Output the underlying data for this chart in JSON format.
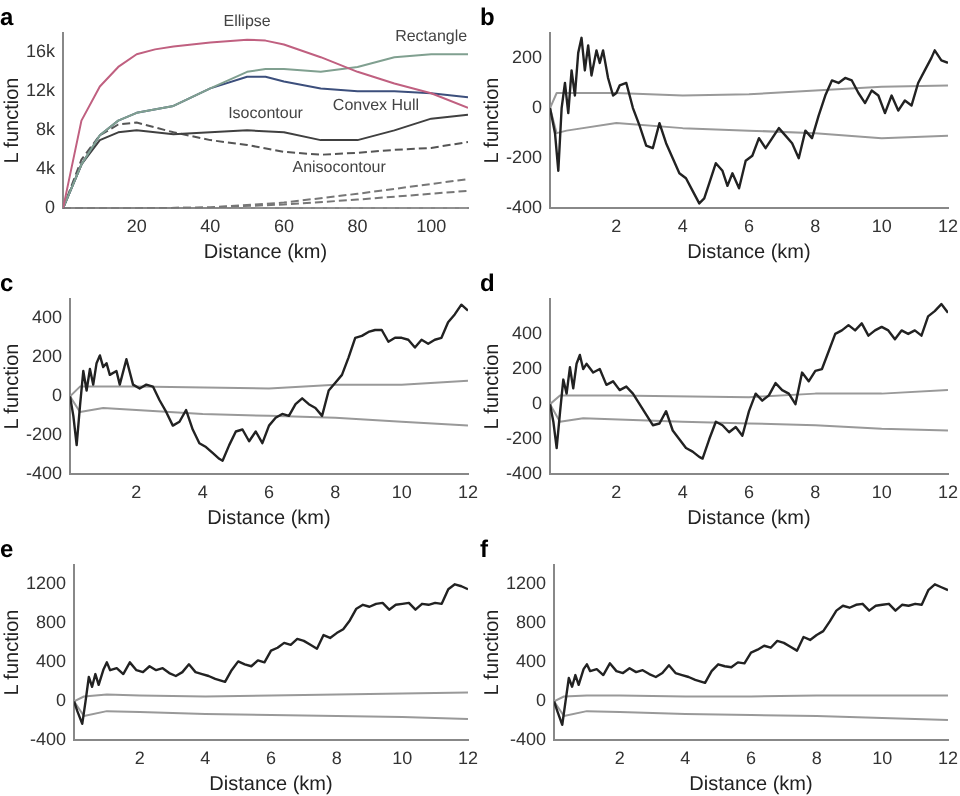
{
  "chart_data": [
    {
      "type": "line",
      "title": "a",
      "xlabel": "Distance (km)",
      "ylabel": "L function",
      "xlim": [
        0,
        110
      ],
      "xticks": [
        20,
        40,
        60,
        80,
        100
      ],
      "ylim": [
        0,
        18000
      ],
      "yticks": [
        0,
        {
          "value": 4000,
          "label": "4k"
        },
        {
          "value": 8000,
          "label": "8k"
        },
        {
          "value": 12000,
          "label": "12k"
        },
        {
          "value": 16000,
          "label": "16k"
        }
      ],
      "series": [
        {
          "color": "#c06080",
          "line_style": "solid",
          "x": [
            0,
            5,
            10,
            15,
            20,
            25,
            30,
            40,
            50,
            55,
            60,
            70,
            80,
            90,
            100,
            110
          ],
          "values": [
            0,
            9000,
            12500,
            14500,
            15800,
            16300,
            16600,
            17000,
            17300,
            17200,
            16800,
            15500,
            14000,
            12800,
            11800,
            10300
          ]
        },
        {
          "color": "#80a090",
          "line_style": "solid",
          "x": [
            0,
            5,
            10,
            15,
            20,
            30,
            40,
            50,
            55,
            60,
            70,
            80,
            90,
            100,
            110
          ],
          "values": [
            0,
            4500,
            7500,
            9000,
            9800,
            10500,
            12300,
            14000,
            14300,
            14300,
            14000,
            14500,
            15500,
            15800,
            15800
          ]
        },
        {
          "color": "#3c4f7c",
          "line_style": "solid",
          "x": [
            0,
            5,
            10,
            15,
            20,
            30,
            40,
            50,
            55,
            60,
            70,
            80,
            90,
            100,
            110
          ],
          "values": [
            0,
            4500,
            7500,
            9000,
            9800,
            10500,
            12300,
            13500,
            13500,
            13000,
            12300,
            12000,
            12000,
            11800,
            11400
          ]
        },
        {
          "color": "#404040",
          "line_style": "solid",
          "x": [
            0,
            5,
            10,
            15,
            20,
            30,
            40,
            50,
            60,
            70,
            80,
            90,
            100,
            110
          ],
          "values": [
            0,
            4500,
            7000,
            7800,
            8000,
            7600,
            7800,
            8000,
            7800,
            7000,
            7000,
            8000,
            9200,
            9600
          ]
        },
        {
          "color": "#555555",
          "line_style": "dashed",
          "x": [
            0,
            5,
            10,
            15,
            20,
            30,
            40,
            50,
            60,
            70,
            80,
            90,
            100,
            110
          ],
          "values": [
            0,
            5000,
            7500,
            8600,
            8800,
            7800,
            7000,
            6500,
            5800,
            5500,
            5700,
            6000,
            6200,
            6800
          ]
        },
        {
          "color": "#777777",
          "line_style": "dashed",
          "x": [
            0,
            20,
            40,
            60,
            80,
            110
          ],
          "values": [
            0,
            0,
            100,
            600,
            1500,
            3000
          ]
        },
        {
          "color": "#777777",
          "line_style": "dashed",
          "x": [
            0,
            20,
            40,
            60,
            80,
            110
          ],
          "values": [
            0,
            0,
            100,
            400,
            900,
            1800
          ]
        },
        {
          "color": "#999999",
          "line_style": "dashed",
          "x": [
            0,
            110
          ],
          "values": [
            0,
            0
          ]
        }
      ],
      "annotations": [
        {
          "text": "Ellipse",
          "x": 50,
          "y": 17300
        },
        {
          "text": "Rectangle",
          "x": 100,
          "y": 15800
        },
        {
          "text": "Convex Hull",
          "x": 85,
          "y": 12000
        },
        {
          "text": "Isocontour",
          "x": 55,
          "y": 7900
        },
        {
          "text": "Anisocontour",
          "x": 75,
          "y": 5600
        }
      ]
    },
    {
      "type": "line",
      "title": "b",
      "xlabel": "Distance (km)",
      "ylabel": "L function",
      "xlim": [
        0,
        12
      ],
      "xticks": [
        2,
        4,
        6,
        8,
        10,
        12
      ],
      "ylim": [
        -400,
        300
      ],
      "yticks": [
        -400,
        -200,
        0,
        200
      ],
      "series": [
        {
          "color": "#222222",
          "x": [
            0,
            0.15,
            0.25,
            0.35,
            0.45,
            0.55,
            0.65,
            0.75,
            0.85,
            0.95,
            1.05,
            1.15,
            1.25,
            1.4,
            1.5,
            1.6,
            1.75,
            1.9,
            2.0,
            2.1,
            2.3,
            2.5,
            2.7,
            2.9,
            3.1,
            3.3,
            3.5,
            3.7,
            3.9,
            4.1,
            4.3,
            4.5,
            4.65,
            4.8,
            5.0,
            5.2,
            5.35,
            5.5,
            5.7,
            5.9,
            6.1,
            6.3,
            6.5,
            6.7,
            6.9,
            7.1,
            7.3,
            7.5,
            7.7,
            7.9,
            8.1,
            8.3,
            8.5,
            8.7,
            8.9,
            9.1,
            9.3,
            9.5,
            9.7,
            9.9,
            10.1,
            10.3,
            10.5,
            10.7,
            10.9,
            11.1,
            11.3,
            11.5,
            11.6,
            11.8,
            12
          ],
          "values": [
            0,
            -100,
            -250,
            0,
            100,
            -20,
            150,
            50,
            220,
            280,
            150,
            250,
            130,
            230,
            180,
            230,
            120,
            50,
            60,
            90,
            100,
            0,
            -70,
            -150,
            -160,
            -60,
            -140,
            -200,
            -260,
            -280,
            -330,
            -380,
            -360,
            -300,
            -220,
            -250,
            -310,
            -260,
            -320,
            -210,
            -190,
            -120,
            -160,
            -120,
            -80,
            -110,
            -140,
            -200,
            -90,
            -120,
            -30,
            50,
            110,
            100,
            120,
            110,
            60,
            20,
            70,
            50,
            -20,
            50,
            -10,
            30,
            10,
            100,
            150,
            200,
            230,
            190,
            180
          ]
        },
        {
          "color": "#999999",
          "x": [
            0,
            0.2,
            0.5,
            2,
            4,
            6,
            8,
            10,
            12
          ],
          "values": [
            0,
            60,
            60,
            60,
            50,
            55,
            70,
            85,
            90
          ]
        },
        {
          "color": "#999999",
          "x": [
            0,
            0.2,
            0.5,
            2,
            4,
            6,
            8,
            10,
            12
          ],
          "values": [
            0,
            -100,
            -90,
            -60,
            -80,
            -90,
            -100,
            -120,
            -110
          ]
        }
      ]
    },
    {
      "type": "line",
      "title": "c",
      "xlabel": "Distance (km)",
      "ylabel": "L function",
      "xlim": [
        0,
        12
      ],
      "xticks": [
        2,
        4,
        6,
        8,
        10,
        12
      ],
      "ylim": [
        -400,
        500
      ],
      "yticks": [
        -400,
        -200,
        0,
        200,
        400
      ],
      "series": [
        {
          "color": "#222222",
          "x": [
            0,
            0.1,
            0.2,
            0.3,
            0.4,
            0.5,
            0.6,
            0.7,
            0.8,
            0.9,
            1.0,
            1.1,
            1.2,
            1.4,
            1.5,
            1.7,
            1.9,
            2.1,
            2.3,
            2.5,
            2.7,
            2.9,
            3.1,
            3.3,
            3.5,
            3.7,
            3.9,
            4.1,
            4.3,
            4.5,
            4.6,
            4.8,
            5.0,
            5.2,
            5.4,
            5.6,
            5.8,
            6.0,
            6.2,
            6.4,
            6.6,
            6.8,
            7.0,
            7.2,
            7.4,
            7.6,
            7.8,
            8.0,
            8.2,
            8.4,
            8.6,
            8.8,
            9.0,
            9.2,
            9.4,
            9.6,
            9.8,
            10.0,
            10.2,
            10.4,
            10.6,
            10.8,
            11.0,
            11.2,
            11.4,
            11.6,
            11.8,
            12
          ],
          "values": [
            0,
            -100,
            -250,
            -50,
            130,
            30,
            140,
            60,
            170,
            210,
            150,
            170,
            110,
            130,
            60,
            190,
            60,
            40,
            60,
            50,
            -20,
            -80,
            -150,
            -130,
            -70,
            -170,
            -240,
            -260,
            -290,
            -320,
            -330,
            -250,
            -180,
            -170,
            -230,
            -180,
            -240,
            -150,
            -110,
            -90,
            -100,
            -40,
            -10,
            -40,
            -60,
            -100,
            30,
            70,
            110,
            200,
            300,
            310,
            330,
            340,
            340,
            280,
            300,
            300,
            290,
            250,
            290,
            270,
            290,
            300,
            380,
            420,
            470,
            440
          ]
        },
        {
          "color": "#999999",
          "x": [
            0,
            0.3,
            2,
            6,
            8,
            10,
            12
          ],
          "values": [
            0,
            50,
            50,
            40,
            60,
            60,
            80
          ]
        },
        {
          "color": "#999999",
          "x": [
            0,
            0.3,
            1,
            4,
            6,
            8,
            10,
            12
          ],
          "values": [
            0,
            -80,
            -60,
            -90,
            -100,
            -110,
            -130,
            -150
          ]
        }
      ]
    },
    {
      "type": "line",
      "title": "d",
      "xlabel": "Distance (km)",
      "ylabel": "L function",
      "xlim": [
        0,
        12
      ],
      "xticks": [
        2,
        4,
        6,
        8,
        10,
        12
      ],
      "ylim": [
        -400,
        600
      ],
      "yticks": [
        -400,
        -200,
        0,
        200,
        400
      ],
      "series": [
        {
          "color": "#222222",
          "x": [
            0,
            0.1,
            0.2,
            0.3,
            0.4,
            0.5,
            0.6,
            0.7,
            0.8,
            0.9,
            1.0,
            1.1,
            1.3,
            1.5,
            1.7,
            1.9,
            2.1,
            2.3,
            2.5,
            2.7,
            2.9,
            3.1,
            3.3,
            3.5,
            3.7,
            3.9,
            4.1,
            4.3,
            4.5,
            4.6,
            4.8,
            5.0,
            5.2,
            5.4,
            5.6,
            5.8,
            6.0,
            6.2,
            6.4,
            6.6,
            6.8,
            7.0,
            7.2,
            7.4,
            7.6,
            7.8,
            8.0,
            8.2,
            8.4,
            8.6,
            8.8,
            9.0,
            9.2,
            9.4,
            9.6,
            9.8,
            10.0,
            10.2,
            10.4,
            10.6,
            10.8,
            11.0,
            11.2,
            11.4,
            11.6,
            11.8,
            12
          ],
          "values": [
            0,
            -100,
            -250,
            -50,
            140,
            60,
            210,
            90,
            230,
            280,
            200,
            230,
            180,
            200,
            110,
            130,
            80,
            100,
            60,
            0,
            -60,
            -120,
            -110,
            -40,
            -150,
            -200,
            -250,
            -270,
            -300,
            -310,
            -200,
            -100,
            -120,
            -160,
            -130,
            -180,
            -40,
            60,
            20,
            50,
            120,
            80,
            60,
            0,
            180,
            130,
            190,
            200,
            300,
            400,
            420,
            450,
            420,
            460,
            390,
            420,
            440,
            420,
            370,
            420,
            400,
            420,
            390,
            500,
            530,
            570,
            520
          ]
        },
        {
          "color": "#999999",
          "x": [
            0,
            0.3,
            2,
            6,
            8,
            10,
            12
          ],
          "values": [
            0,
            50,
            50,
            40,
            60,
            60,
            80
          ]
        },
        {
          "color": "#999999",
          "x": [
            0,
            0.3,
            1,
            4,
            6,
            8,
            10,
            12
          ],
          "values": [
            0,
            -100,
            -80,
            -100,
            -110,
            -120,
            -140,
            -150
          ]
        }
      ]
    },
    {
      "type": "line",
      "title": "e",
      "xlabel": "Distance (km)",
      "ylabel": "L function",
      "xlim": [
        0,
        12
      ],
      "xticks": [
        2,
        4,
        6,
        8,
        10,
        12
      ],
      "ylim": [
        -400,
        1400
      ],
      "yticks": [
        -400,
        0,
        400,
        800,
        1200
      ],
      "series": [
        {
          "color": "#222222",
          "x": [
            0,
            0.1,
            0.25,
            0.35,
            0.45,
            0.55,
            0.65,
            0.75,
            0.9,
            1.0,
            1.1,
            1.3,
            1.5,
            1.7,
            1.9,
            2.1,
            2.3,
            2.5,
            2.7,
            2.9,
            3.1,
            3.3,
            3.5,
            3.7,
            3.9,
            4.1,
            4.3,
            4.5,
            4.6,
            4.8,
            5.0,
            5.2,
            5.4,
            5.6,
            5.8,
            6.0,
            6.2,
            6.4,
            6.6,
            6.8,
            7.0,
            7.2,
            7.4,
            7.6,
            7.8,
            8.0,
            8.2,
            8.4,
            8.6,
            8.8,
            9.0,
            9.2,
            9.4,
            9.6,
            9.8,
            10.0,
            10.2,
            10.4,
            10.6,
            10.8,
            11.0,
            11.2,
            11.4,
            11.6,
            11.8,
            12
          ],
          "values": [
            0,
            -100,
            -230,
            0,
            250,
            150,
            280,
            170,
            330,
            400,
            320,
            340,
            280,
            400,
            320,
            300,
            360,
            320,
            340,
            290,
            260,
            300,
            380,
            300,
            280,
            260,
            230,
            210,
            200,
            320,
            410,
            380,
            360,
            420,
            400,
            520,
            550,
            600,
            580,
            640,
            620,
            580,
            540,
            680,
            650,
            700,
            740,
            830,
            950,
            990,
            970,
            1000,
            1010,
            940,
            990,
            1000,
            1010,
            940,
            1000,
            990,
            1010,
            1000,
            1150,
            1200,
            1180,
            1150
          ]
        },
        {
          "color": "#999999",
          "x": [
            0,
            0.3,
            1,
            2,
            4,
            6,
            8,
            10,
            12
          ],
          "values": [
            0,
            50,
            70,
            60,
            50,
            60,
            70,
            80,
            90
          ]
        },
        {
          "color": "#999999",
          "x": [
            0,
            0.3,
            1,
            2,
            4,
            6,
            8,
            10,
            12
          ],
          "values": [
            0,
            -150,
            -100,
            -110,
            -130,
            -140,
            -150,
            -160,
            -180
          ]
        }
      ]
    },
    {
      "type": "line",
      "title": "f",
      "xlabel": "Distance (km)",
      "ylabel": "L function",
      "xlim": [
        0,
        12
      ],
      "xticks": [
        2,
        4,
        6,
        8,
        10,
        12
      ],
      "ylim": [
        -400,
        1400
      ],
      "yticks": [
        -400,
        0,
        400,
        800,
        1200
      ],
      "series": [
        {
          "color": "#222222",
          "x": [
            0,
            0.1,
            0.25,
            0.35,
            0.45,
            0.55,
            0.65,
            0.75,
            0.9,
            1.0,
            1.1,
            1.3,
            1.5,
            1.7,
            1.9,
            2.1,
            2.3,
            2.5,
            2.7,
            2.9,
            3.1,
            3.3,
            3.5,
            3.7,
            3.9,
            4.1,
            4.3,
            4.5,
            4.6,
            4.8,
            5.0,
            5.2,
            5.4,
            5.6,
            5.8,
            6.0,
            6.2,
            6.4,
            6.6,
            6.8,
            7.0,
            7.2,
            7.4,
            7.6,
            7.8,
            8.0,
            8.2,
            8.4,
            8.6,
            8.8,
            9.0,
            9.2,
            9.4,
            9.6,
            9.8,
            10.0,
            10.2,
            10.4,
            10.6,
            10.8,
            11.0,
            11.2,
            11.4,
            11.6,
            11.8,
            12
          ],
          "values": [
            0,
            -100,
            -240,
            0,
            240,
            150,
            270,
            170,
            330,
            380,
            310,
            330,
            270,
            390,
            310,
            290,
            340,
            300,
            320,
            280,
            250,
            290,
            370,
            290,
            270,
            250,
            220,
            200,
            190,
            310,
            380,
            360,
            350,
            400,
            390,
            500,
            530,
            570,
            550,
            620,
            600,
            560,
            520,
            660,
            630,
            680,
            720,
            820,
            930,
            980,
            960,
            990,
            1000,
            930,
            980,
            990,
            1000,
            930,
            990,
            980,
            1000,
            990,
            1140,
            1200,
            1170,
            1140
          ]
        },
        {
          "color": "#999999",
          "x": [
            0,
            0.3,
            1,
            2,
            4,
            6,
            8,
            10,
            12
          ],
          "values": [
            0,
            50,
            60,
            60,
            50,
            50,
            60,
            60,
            60
          ]
        },
        {
          "color": "#999999",
          "x": [
            0,
            0.3,
            1,
            2,
            4,
            6,
            8,
            10,
            12
          ],
          "values": [
            0,
            -150,
            -100,
            -110,
            -130,
            -140,
            -150,
            -170,
            -190
          ]
        }
      ]
    }
  ]
}
